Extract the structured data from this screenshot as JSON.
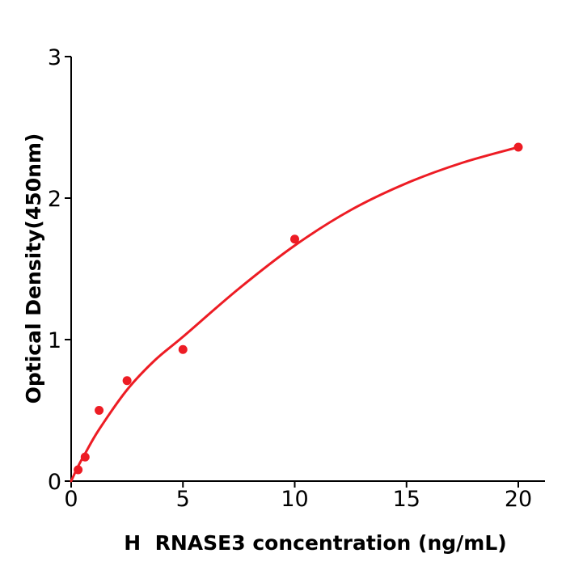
{
  "figure": {
    "background": "#ffffff",
    "axis_color": "#000000"
  },
  "chart_data": {
    "type": "scatter",
    "title": "",
    "xlabel": "H  RNASE3 concentration (ng/mL)",
    "ylabel": "Optical Density(450nm)",
    "xlim": [
      0,
      21.2
    ],
    "ylim": [
      0,
      3
    ],
    "grid": false,
    "legend_position": "none",
    "x_ticks": {
      "values": [
        0,
        5,
        10,
        15,
        20
      ],
      "labels": [
        "0",
        "5",
        "10",
        "15",
        "20"
      ]
    },
    "y_ticks": {
      "values": [
        0,
        1,
        2,
        3
      ],
      "labels": [
        "0",
        "1",
        "2",
        "3"
      ]
    },
    "series": [
      {
        "name": "standard-points",
        "type": "scatter",
        "color": "#ed1c24",
        "x": [
          0.3125,
          0.625,
          1.25,
          2.5,
          5,
          10,
          20
        ],
        "y": [
          0.08,
          0.17,
          0.5,
          0.71,
          0.93,
          1.71,
          2.36
        ]
      },
      {
        "name": "fit-curve",
        "type": "line",
        "color": "#ed1c24",
        "points": [
          [
            0,
            0
          ],
          [
            0.3125,
            0.105
          ],
          [
            0.625,
            0.195
          ],
          [
            1.25,
            0.365
          ],
          [
            2.5,
            0.645
          ],
          [
            3.75,
            0.855
          ],
          [
            5,
            1.02
          ],
          [
            7.5,
            1.36
          ],
          [
            10,
            1.665
          ],
          [
            12.5,
            1.915
          ],
          [
            15,
            2.105
          ],
          [
            17.5,
            2.25
          ],
          [
            20,
            2.36
          ]
        ]
      }
    ]
  }
}
